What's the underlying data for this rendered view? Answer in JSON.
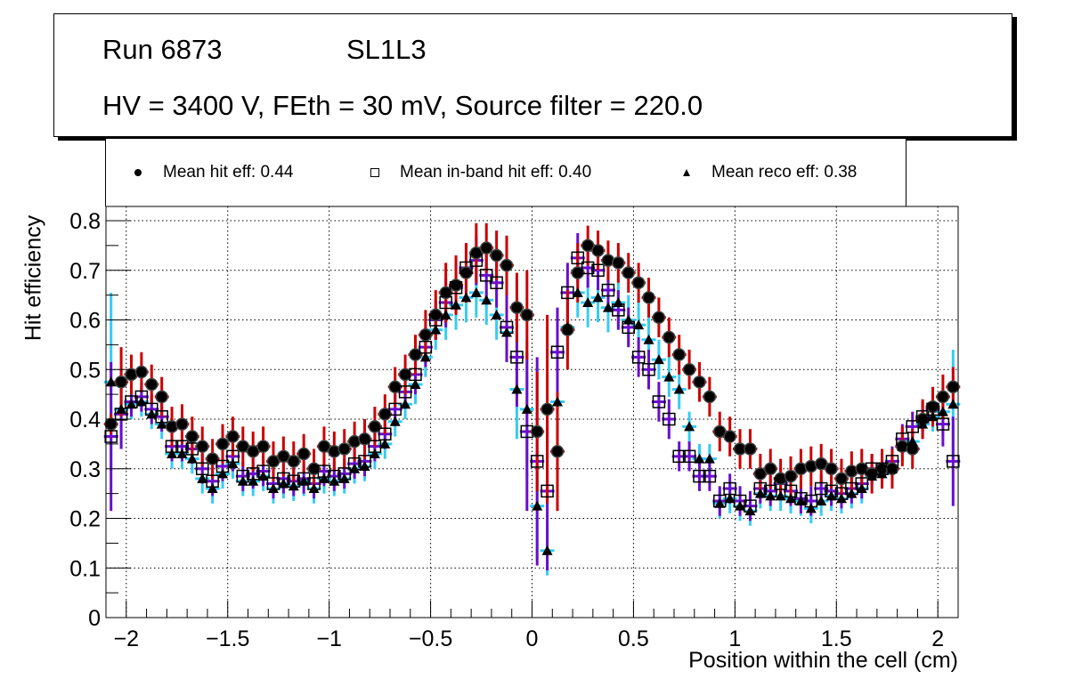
{
  "title": {
    "run": "Run 6873",
    "layer": "SL1L3",
    "conditions": "HV = 3400 V, FEth = 30 mV, Source filter = 220.0"
  },
  "legend": [
    {
      "marker": "filled-circle",
      "label": "Mean hit  eff: 0.44"
    },
    {
      "marker": "open-square",
      "label": "Mean in-band hit eff: 0.40"
    },
    {
      "marker": "filled-triangle",
      "label": "Mean reco eff: 0.38"
    }
  ],
  "colors": {
    "hit_err": "#cc0000",
    "inband_err": "#6a0dcc",
    "reco_err": "#33ccf5",
    "marker": "#000000",
    "grid": "#000000"
  },
  "chart_data": {
    "type": "scatter",
    "title": "",
    "xlabel": "Position within the cell (cm)",
    "ylabel": "Hit efficiency",
    "xlim": [
      -2.1,
      2.1
    ],
    "ylim": [
      0,
      0.83
    ],
    "grid": true,
    "legend_position": "top",
    "x_ticks": [
      "-2",
      "-1.5",
      "-1",
      "-0.5",
      "0",
      "0.5",
      "1",
      "1.5",
      "2"
    ],
    "x_tick_values": [
      -2,
      -1.5,
      -1,
      -0.5,
      0,
      0.5,
      1,
      1.5,
      2
    ],
    "y_ticks": [
      "0",
      "0.1",
      "0.2",
      "0.3",
      "0.4",
      "0.5",
      "0.6",
      "0.7",
      "0.8"
    ],
    "y_tick_values": [
      0,
      0.1,
      0.2,
      0.3,
      0.4,
      0.5,
      0.6,
      0.7,
      0.8
    ],
    "x_start": -2.075,
    "x_step": 0.05,
    "series": [
      {
        "name": "Mean hit eff",
        "marker": "filled-circle",
        "values": [
          0.39,
          0.475,
          0.49,
          0.495,
          0.47,
          0.445,
          0.385,
          0.39,
          0.365,
          0.345,
          0.32,
          0.35,
          0.365,
          0.345,
          0.335,
          0.345,
          0.315,
          0.325,
          0.315,
          0.33,
          0.3,
          0.345,
          0.335,
          0.34,
          0.355,
          0.36,
          0.385,
          0.41,
          0.465,
          0.49,
          0.53,
          0.57,
          0.61,
          0.655,
          0.67,
          0.695,
          0.735,
          0.745,
          0.73,
          0.71,
          0.625,
          0.61,
          0.375,
          0.42,
          0.335,
          0.58,
          0.695,
          0.75,
          0.74,
          0.72,
          0.715,
          0.695,
          0.675,
          0.645,
          0.605,
          0.565,
          0.53,
          0.5,
          0.475,
          0.445,
          0.375,
          0.365,
          0.34,
          0.34,
          0.29,
          0.3,
          0.28,
          0.285,
          0.3,
          0.305,
          0.31,
          0.3,
          0.28,
          0.295,
          0.3,
          0.29,
          0.3,
          0.3,
          0.345,
          0.34,
          0.4,
          0.425,
          0.445,
          0.465
        ],
        "errors": [
          0.02,
          0.07,
          0.04,
          0.04,
          0.04,
          0.04,
          0.04,
          0.04,
          0.04,
          0.04,
          0.04,
          0.04,
          0.04,
          0.04,
          0.04,
          0.04,
          0.04,
          0.04,
          0.04,
          0.04,
          0.04,
          0.04,
          0.04,
          0.04,
          0.04,
          0.04,
          0.04,
          0.04,
          0.04,
          0.04,
          0.04,
          0.05,
          0.05,
          0.06,
          0.06,
          0.06,
          0.06,
          0.05,
          0.05,
          0.06,
          0.07,
          0.09,
          0.12,
          0.19,
          0.12,
          0.08,
          0.06,
          0.04,
          0.04,
          0.04,
          0.04,
          0.04,
          0.04,
          0.04,
          0.04,
          0.04,
          0.04,
          0.04,
          0.04,
          0.04,
          0.04,
          0.04,
          0.04,
          0.04,
          0.04,
          0.04,
          0.04,
          0.04,
          0.04,
          0.04,
          0.04,
          0.04,
          0.04,
          0.04,
          0.04,
          0.04,
          0.04,
          0.04,
          0.04,
          0.04,
          0.04,
          0.04,
          0.045,
          0.04
        ]
      },
      {
        "name": "Mean in-band hit eff",
        "marker": "open-square",
        "values": [
          0.365,
          0.41,
          0.435,
          0.445,
          0.42,
          0.405,
          0.345,
          0.345,
          0.34,
          0.3,
          0.275,
          0.305,
          0.325,
          0.285,
          0.29,
          0.295,
          0.27,
          0.28,
          0.275,
          0.28,
          0.27,
          0.295,
          0.285,
          0.29,
          0.31,
          0.315,
          0.345,
          0.37,
          0.42,
          0.455,
          0.49,
          0.545,
          0.6,
          0.635,
          0.665,
          0.705,
          0.72,
          0.69,
          0.675,
          0.585,
          0.525,
          0.375,
          0.315,
          0.255,
          0.535,
          0.655,
          0.725,
          0.705,
          0.7,
          0.66,
          0.62,
          0.585,
          0.525,
          0.5,
          0.435,
          0.4,
          0.325,
          0.325,
          0.285,
          0.285,
          0.235,
          0.26,
          0.235,
          0.225,
          0.26,
          0.255,
          0.27,
          0.255,
          0.24,
          0.235,
          0.26,
          0.255,
          0.25,
          0.26,
          0.27,
          0.3,
          0.3,
          0.315,
          0.36,
          0.385,
          0.405,
          0.42,
          0.39,
          0.315
        ],
        "errors": [
          0.15,
          0.07,
          0.03,
          0.03,
          0.03,
          0.03,
          0.03,
          0.03,
          0.03,
          0.03,
          0.03,
          0.03,
          0.03,
          0.03,
          0.03,
          0.03,
          0.03,
          0.03,
          0.03,
          0.03,
          0.03,
          0.03,
          0.03,
          0.03,
          0.03,
          0.03,
          0.03,
          0.03,
          0.03,
          0.03,
          0.04,
          0.04,
          0.04,
          0.05,
          0.05,
          0.05,
          0.05,
          0.05,
          0.05,
          0.07,
          0.1,
          0.16,
          0.21,
          0.16,
          0.09,
          0.06,
          0.05,
          0.04,
          0.04,
          0.04,
          0.04,
          0.04,
          0.04,
          0.04,
          0.04,
          0.04,
          0.03,
          0.03,
          0.03,
          0.03,
          0.03,
          0.03,
          0.03,
          0.03,
          0.03,
          0.03,
          0.03,
          0.03,
          0.03,
          0.03,
          0.03,
          0.03,
          0.03,
          0.03,
          0.03,
          0.03,
          0.03,
          0.03,
          0.03,
          0.03,
          0.03,
          0.03,
          0.045,
          0.09
        ]
      },
      {
        "name": "Mean reco eff",
        "marker": "filled-triangle",
        "values": [
          0.475,
          0.42,
          0.43,
          0.435,
          0.41,
          0.39,
          0.33,
          0.33,
          0.32,
          0.28,
          0.26,
          0.29,
          0.31,
          0.275,
          0.275,
          0.285,
          0.26,
          0.27,
          0.265,
          0.275,
          0.26,
          0.28,
          0.275,
          0.28,
          0.3,
          0.305,
          0.33,
          0.35,
          0.395,
          0.43,
          0.47,
          0.525,
          0.58,
          0.61,
          0.63,
          0.645,
          0.655,
          0.64,
          0.61,
          0.575,
          0.46,
          0.42,
          0.225,
          0.135,
          0.435,
          0.585,
          0.655,
          0.635,
          0.645,
          0.625,
          0.635,
          0.6,
          0.59,
          0.56,
          0.52,
          0.485,
          0.46,
          0.385,
          0.32,
          0.32,
          0.23,
          0.24,
          0.225,
          0.215,
          0.25,
          0.245,
          0.245,
          0.24,
          0.235,
          0.22,
          0.235,
          0.245,
          0.24,
          0.25,
          0.26,
          0.285,
          0.29,
          0.3,
          0.345,
          0.355,
          0.39,
          0.405,
          0.415,
          0.43
        ],
        "errors": [
          0.18,
          0.08,
          0.03,
          0.03,
          0.03,
          0.03,
          0.03,
          0.03,
          0.03,
          0.03,
          0.03,
          0.03,
          0.03,
          0.03,
          0.03,
          0.03,
          0.03,
          0.03,
          0.03,
          0.03,
          0.03,
          0.03,
          0.03,
          0.03,
          0.03,
          0.03,
          0.03,
          0.03,
          0.03,
          0.03,
          0.04,
          0.04,
          0.04,
          0.05,
          0.05,
          0.05,
          0.05,
          0.05,
          0.05,
          0.06,
          0.1,
          0.14,
          0.11,
          0.05,
          0.07,
          0.06,
          0.05,
          0.05,
          0.05,
          0.05,
          0.05,
          0.05,
          0.05,
          0.05,
          0.04,
          0.04,
          0.04,
          0.03,
          0.03,
          0.03,
          0.03,
          0.03,
          0.03,
          0.03,
          0.03,
          0.03,
          0.03,
          0.03,
          0.03,
          0.03,
          0.03,
          0.03,
          0.03,
          0.03,
          0.03,
          0.03,
          0.03,
          0.03,
          0.03,
          0.03,
          0.03,
          0.03,
          0.05,
          0.11
        ]
      }
    ]
  }
}
